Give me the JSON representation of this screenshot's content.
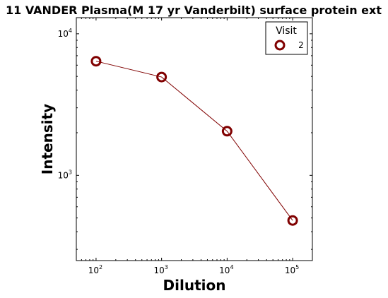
{
  "chart_data": {
    "type": "line",
    "title": "11 VANDER Plasma(M 17 yr Vanderbilt) surface protein ext",
    "xlabel": "Dilution",
    "ylabel": "Intensity",
    "x_scale": "log",
    "y_scale": "log",
    "xlim": [
      50,
      200000
    ],
    "ylim": [
      250,
      13000
    ],
    "x_ticks": [
      {
        "value": 100,
        "base": "10",
        "exp": "2"
      },
      {
        "value": 1000,
        "base": "10",
        "exp": "3"
      },
      {
        "value": 10000,
        "base": "10",
        "exp": "4"
      },
      {
        "value": 100000,
        "base": "10",
        "exp": "5"
      }
    ],
    "y_ticks": [
      {
        "value": 1000,
        "base": "10",
        "exp": "3"
      },
      {
        "value": 10000,
        "base": "10",
        "exp": "4"
      }
    ],
    "legend": {
      "title": "Visit",
      "position": "top-right"
    },
    "series": [
      {
        "name": "2",
        "color": "#800000",
        "marker": "open-circle",
        "x": [
          100,
          1000,
          10000,
          100000
        ],
        "y": [
          6400,
          4950,
          2050,
          480
        ]
      }
    ],
    "grid": false
  }
}
